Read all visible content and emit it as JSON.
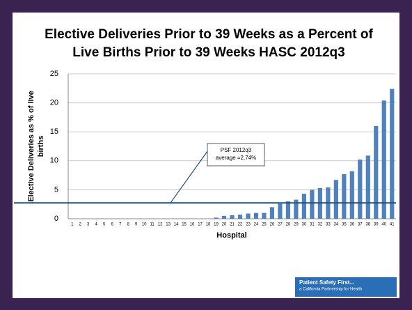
{
  "chart_data": {
    "type": "bar",
    "title": [
      "Elective Deliveries Prior to 39 Weeks as a Percent of",
      "Live Births Prior to 39 Weeks HASC 2012q3"
    ],
    "xlabel": "Hospital",
    "ylabel": [
      "Elective Deliveries as % of live",
      "births"
    ],
    "categories": [
      "1",
      "2",
      "3",
      "4",
      "5",
      "6",
      "7",
      "8",
      "9",
      "10",
      "11",
      "12",
      "13",
      "14",
      "15",
      "16",
      "17",
      "18",
      "19",
      "20",
      "21",
      "22",
      "23",
      "24",
      "25",
      "26",
      "27",
      "28",
      "29",
      "30",
      "31",
      "32",
      "33",
      "34",
      "35",
      "36",
      "37",
      "38",
      "39",
      "40",
      "41"
    ],
    "values": [
      0,
      0,
      0,
      0,
      0,
      0,
      0,
      0,
      0,
      0,
      0,
      0,
      0,
      0,
      0,
      0,
      0,
      0,
      0.2,
      0.5,
      0.6,
      0.7,
      0.9,
      1.0,
      1.0,
      2.0,
      2.6,
      3.0,
      3.3,
      4.3,
      5.0,
      5.3,
      5.4,
      6.7,
      7.7,
      8.2,
      10.2,
      10.9,
      16.0,
      20.4,
      22.4
    ],
    "color": "#4f81bd",
    "ylim": [
      0,
      25
    ],
    "yticks": [
      0,
      5,
      10,
      15,
      20,
      25
    ],
    "grid": true,
    "average": {
      "value": 2.74,
      "color": "#1f4e79",
      "label": [
        "PSF 2012q3",
        "average =2.74%"
      ]
    }
  },
  "logo": [
    "Patient Safety First...",
    "a California Partnership for Health"
  ]
}
